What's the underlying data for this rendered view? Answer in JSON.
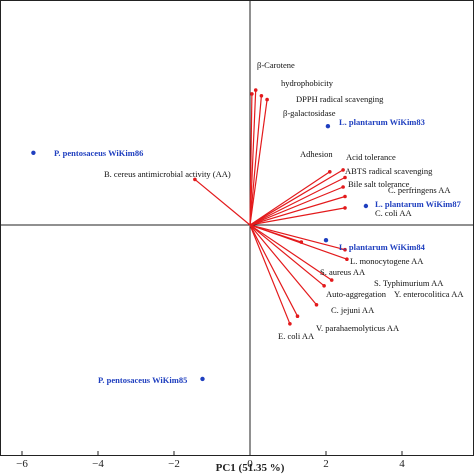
{
  "chart_data": {
    "type": "scatter",
    "subtype": "pca-biplot",
    "xlabel": "PC1 (51.35 %)",
    "xlim": [
      -6.3,
      6.3
    ],
    "ylim": [
      -6.3,
      6.3
    ],
    "x_ticks": [
      {
        "value": -6,
        "label": "−6"
      },
      {
        "value": -4,
        "label": "−4"
      },
      {
        "value": -2,
        "label": "−2"
      },
      {
        "value": 0,
        "label": "0"
      },
      {
        "value": 2,
        "label": "2"
      },
      {
        "value": 4,
        "label": "4"
      }
    ],
    "loadings": [
      {
        "label": "β-Carotene",
        "x": 0.05,
        "y": 3.45
      },
      {
        "label": "hydrophobicity",
        "x": 0.15,
        "y": 3.55
      },
      {
        "label": "DPPH radical scavenging",
        "x": 0.3,
        "y": 3.4
      },
      {
        "label": "β-galactosidase",
        "x": 0.45,
        "y": 3.3
      },
      {
        "label": "Adhesion",
        "x": 2.1,
        "y": 1.4
      },
      {
        "label": "Acid tolerance",
        "x": 2.45,
        "y": 1.45
      },
      {
        "label": "ABTS radical scavenging",
        "x": 2.5,
        "y": 1.25
      },
      {
        "label": "Bile salt tolerance",
        "x": 2.45,
        "y": 1.0
      },
      {
        "label": "C. perfringens AA",
        "x": 2.5,
        "y": 0.75
      },
      {
        "label": "C. coli AA",
        "x": 2.5,
        "y": 0.45
      },
      {
        "label": "B. cereus antimicrobial activity (AA)",
        "x": -1.45,
        "y": 1.2
      },
      {
        "label": "L. monocytogene AA",
        "x": 2.5,
        "y": -0.65
      },
      {
        "label": "S. Typhimurium AA",
        "x": 2.55,
        "y": -0.9
      },
      {
        "label": "S. aureus AA",
        "x": 1.35,
        "y": -0.45
      },
      {
        "label": "Y. enterocolitica AA",
        "x": 2.15,
        "y": -1.45
      },
      {
        "label": "Auto-aggregation",
        "x": 1.95,
        "y": -1.6
      },
      {
        "label": "C. jejuni AA",
        "x": 1.75,
        "y": -2.1
      },
      {
        "label": "V. parahaemolyticus AA",
        "x": 1.25,
        "y": -2.4
      },
      {
        "label": "E. coli AA",
        "x": 1.05,
        "y": -2.6
      }
    ],
    "strains": [
      {
        "label": "L. plantarum WiKim83",
        "x": 2.05,
        "y": 2.6
      },
      {
        "label": "P. pentosaceus WiKim86",
        "x": -5.7,
        "y": 1.9
      },
      {
        "label": "L. plantarum WiKim87",
        "x": 3.05,
        "y": 0.5
      },
      {
        "label": "L. plantarum WiKim84",
        "x": 2.0,
        "y": -0.4
      },
      {
        "label": "P. pentosaceus WiKim85",
        "x": -1.25,
        "y": -4.05
      }
    ],
    "colors": {
      "vectors": "#e31a1c",
      "strains": "#1f3fbf",
      "axes": "#222222"
    }
  }
}
